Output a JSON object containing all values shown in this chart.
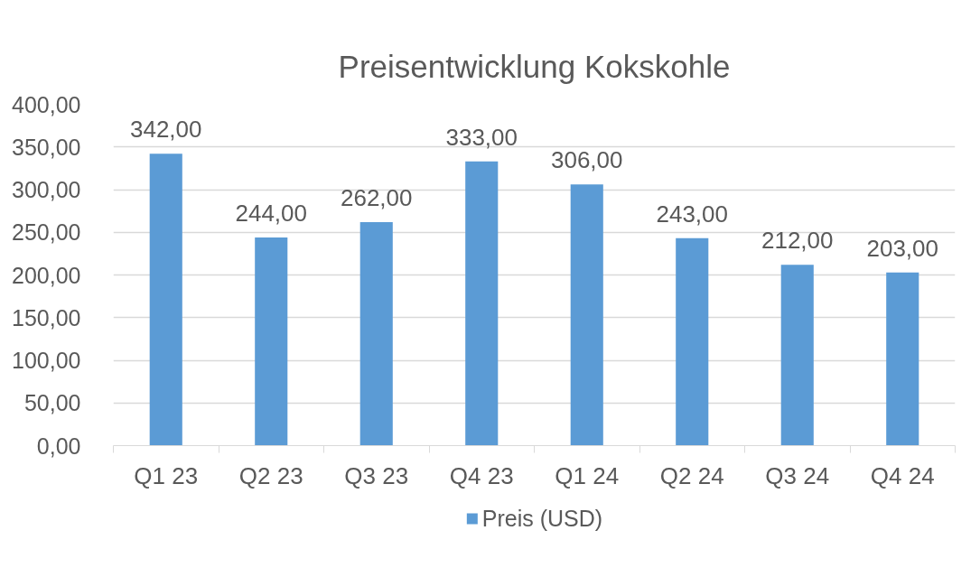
{
  "chart_data": {
    "type": "bar",
    "title": "Preisentwicklung Kokskohle",
    "categories": [
      "Q1 23",
      "Q2 23",
      "Q3 23",
      "Q4 23",
      "Q1 24",
      "Q2 24",
      "Q3 24",
      "Q4 24"
    ],
    "series": [
      {
        "name": "Preis (USD)",
        "color": "#5b9bd5",
        "values": [
          342,
          244,
          262,
          333,
          306,
          243,
          212,
          203
        ],
        "value_labels": [
          "342,00",
          "244,00",
          "262,00",
          "333,00",
          "306,00",
          "243,00",
          "212,00",
          "203,00"
        ]
      }
    ],
    "ylim": [
      0,
      400
    ],
    "yticks": [
      {
        "value": 0,
        "label": "0,00"
      },
      {
        "value": 50,
        "label": "50,00"
      },
      {
        "value": 100,
        "label": "100,00"
      },
      {
        "value": 150,
        "label": "150,00"
      },
      {
        "value": 200,
        "label": "200,00"
      },
      {
        "value": 250,
        "label": "250,00"
      },
      {
        "value": 300,
        "label": "300,00"
      },
      {
        "value": 350,
        "label": "350,00"
      },
      {
        "value": 400,
        "label": "400,00"
      }
    ],
    "grid": "y",
    "legend": "bottom"
  }
}
